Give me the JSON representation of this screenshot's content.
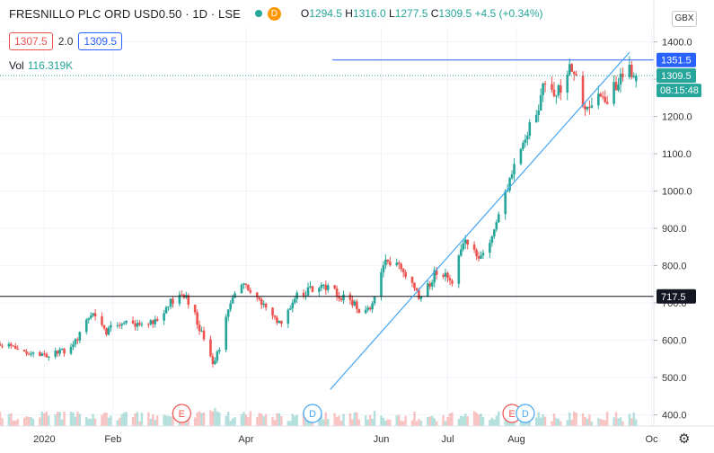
{
  "header": {
    "title": "FRESNILLO PLC ORD USD0.50 · 1D · LSE",
    "d_badge": "D",
    "ohlc": {
      "o_label": "O",
      "o": "1294.5",
      "h_label": "H",
      "h": "1316.0",
      "l_label": "L",
      "l": "1277.5",
      "c_label": "C",
      "c": "1309.5",
      "change": "+4.5 (+0.34%)"
    }
  },
  "controls": {
    "sell": "1307.5",
    "spread": "2.0",
    "buy": "1309.5"
  },
  "volume": {
    "label": "Vol",
    "value": "116.319K"
  },
  "currency": "GBX",
  "colors": {
    "up": "#26a69a",
    "down": "#ef5350",
    "line": "#42a5f5",
    "accent": "#2962ff"
  },
  "chart_data": {
    "type": "candlestick",
    "y_ticks": [
      "400.0",
      "500.0",
      "600.0",
      "700.0",
      "800.0",
      "900.0",
      "1000.0",
      "1100.0",
      "1200.0",
      "1300.0",
      "1400.0"
    ],
    "ylim": [
      370,
      1440
    ],
    "x_ticks": [
      {
        "label": "2020",
        "date": "2020-01-01"
      },
      {
        "label": "Feb",
        "date": "2020-02-01"
      },
      {
        "label": "Apr",
        "date": "2020-04-01"
      },
      {
        "label": "Jun",
        "date": "2020-06-01"
      },
      {
        "label": "Jul",
        "date": "2020-07-01"
      },
      {
        "label": "Aug",
        "date": "2020-08-01"
      },
      {
        "label": "Oc",
        "date": "2020-10-01"
      }
    ],
    "xlim": [
      "2019-12-12",
      "2020-10-02"
    ],
    "price_labels": [
      {
        "value": 1351.5,
        "text": "1351.5",
        "color": "#2962ff"
      },
      {
        "value": 1309.5,
        "text": "1309.5",
        "color": "#26a69a"
      },
      {
        "value": 717.5,
        "text": "717.5",
        "color": "#131722"
      }
    ],
    "countdown": "08:15:48",
    "horizontal_lines": [
      {
        "value": 717.5,
        "color": "#131722",
        "from": "2019-12-12"
      },
      {
        "value": 1351.5,
        "color": "#2962ff",
        "from": "2020-05-10"
      }
    ],
    "trend_line": {
      "from": {
        "date": "2020-05-09",
        "price": 468
      },
      "to": {
        "date": "2020-09-21",
        "price": 1372
      }
    },
    "events": [
      {
        "type": "E",
        "date": "2020-03-03"
      },
      {
        "type": "D",
        "date": "2020-05-01"
      },
      {
        "type": "E",
        "date": "2020-07-30"
      },
      {
        "type": "D",
        "date": "2020-08-05"
      }
    ],
    "anchors": [
      {
        "date": "2019-12-12",
        "price": 590
      },
      {
        "date": "2020-01-03",
        "price": 560
      },
      {
        "date": "2020-01-13",
        "price": 580
      },
      {
        "date": "2020-01-22",
        "price": 670
      },
      {
        "date": "2020-01-29",
        "price": 625
      },
      {
        "date": "2020-02-07",
        "price": 650
      },
      {
        "date": "2020-02-17",
        "price": 640
      },
      {
        "date": "2020-02-27",
        "price": 700
      },
      {
        "date": "2020-03-03",
        "price": 735
      },
      {
        "date": "2020-03-09",
        "price": 670
      },
      {
        "date": "2020-03-13",
        "price": 600
      },
      {
        "date": "2020-03-17",
        "price": 540
      },
      {
        "date": "2020-03-20",
        "price": 580
      },
      {
        "date": "2020-03-25",
        "price": 700
      },
      {
        "date": "2020-03-31",
        "price": 760
      },
      {
        "date": "2020-04-08",
        "price": 700
      },
      {
        "date": "2020-04-16",
        "price": 645
      },
      {
        "date": "2020-04-24",
        "price": 720
      },
      {
        "date": "2020-05-04",
        "price": 750
      },
      {
        "date": "2020-05-15",
        "price": 715
      },
      {
        "date": "2020-05-22",
        "price": 685
      },
      {
        "date": "2020-05-28",
        "price": 690
      },
      {
        "date": "2020-06-02",
        "price": 815
      },
      {
        "date": "2020-06-10",
        "price": 800
      },
      {
        "date": "2020-06-19",
        "price": 710
      },
      {
        "date": "2020-06-25",
        "price": 780
      },
      {
        "date": "2020-07-03",
        "price": 760
      },
      {
        "date": "2020-07-08",
        "price": 860
      },
      {
        "date": "2020-07-15",
        "price": 830
      },
      {
        "date": "2020-07-20",
        "price": 860
      },
      {
        "date": "2020-07-24",
        "price": 930
      },
      {
        "date": "2020-07-30",
        "price": 1050
      },
      {
        "date": "2020-08-04",
        "price": 1130
      },
      {
        "date": "2020-08-11",
        "price": 1230
      },
      {
        "date": "2020-08-14",
        "price": 1295
      },
      {
        "date": "2020-08-21",
        "price": 1260
      },
      {
        "date": "2020-08-26",
        "price": 1335
      },
      {
        "date": "2020-08-31",
        "price": 1215
      },
      {
        "date": "2020-09-07",
        "price": 1275
      },
      {
        "date": "2020-09-11",
        "price": 1240
      },
      {
        "date": "2020-09-15",
        "price": 1285
      },
      {
        "date": "2020-09-21",
        "price": 1330
      },
      {
        "date": "2020-09-24",
        "price": 1309
      }
    ]
  }
}
